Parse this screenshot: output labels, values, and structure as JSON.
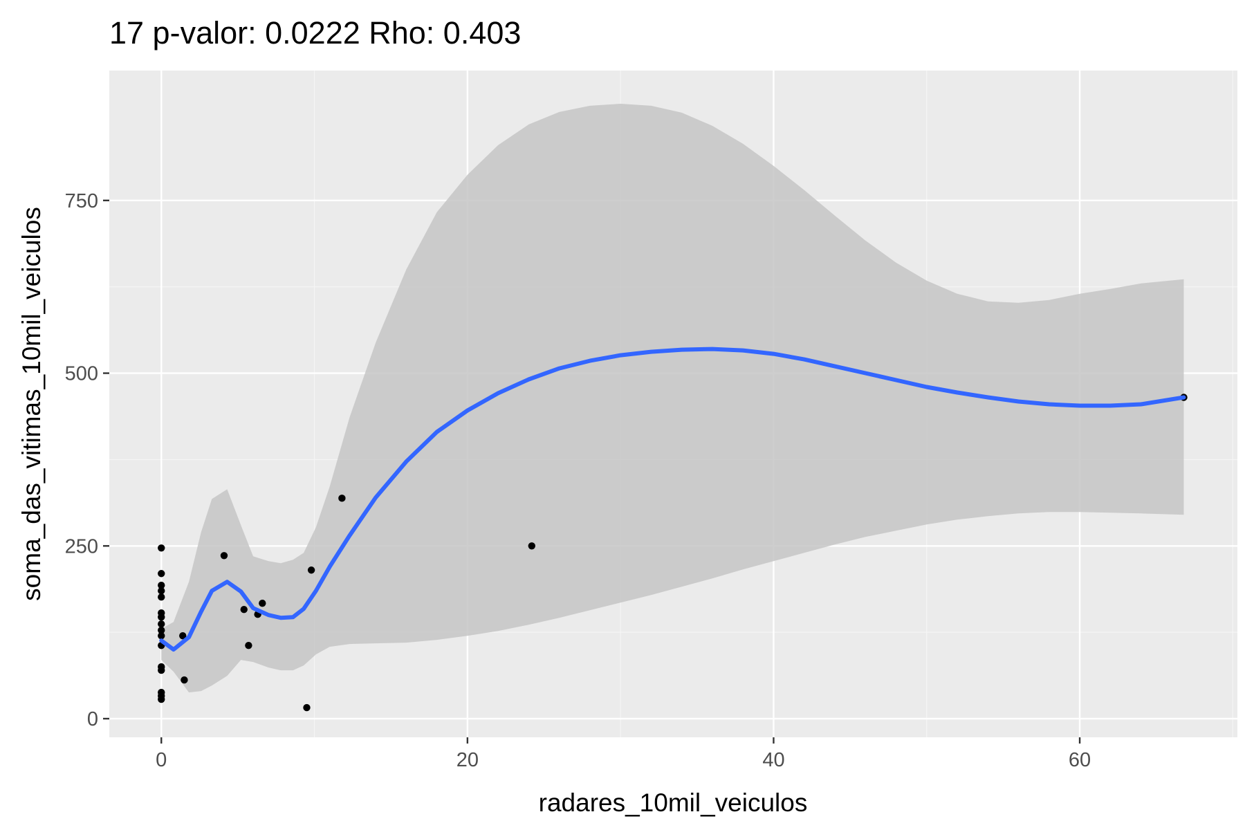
{
  "chart_data": {
    "type": "scatter",
    "title": "17 p-valor: 0.0222 Rho: 0.403",
    "xlabel": "radares_10mil_veiculos",
    "ylabel": "soma_das_vitimas_10mil_veiculos",
    "xlim": [
      -3.4,
      70.3
    ],
    "ylim": [
      -27,
      938
    ],
    "x_ticks": [
      0,
      20,
      40,
      60
    ],
    "y_ticks": [
      0,
      250,
      500,
      750
    ],
    "x_tick_labels": [
      "0",
      "20",
      "40",
      "60"
    ],
    "y_tick_labels": [
      "0",
      "250",
      "500",
      "750"
    ],
    "grid": true,
    "colors": {
      "panel": "#ebebeb",
      "grid_major": "#ffffff",
      "grid_minor": "#f5f5f5",
      "points": "#000000",
      "smooth_line": "#3366ff",
      "ribbon": "#c6c6c6"
    },
    "points": [
      {
        "x": 0,
        "y": 247
      },
      {
        "x": 0,
        "y": 210
      },
      {
        "x": 0,
        "y": 193
      },
      {
        "x": 0,
        "y": 185
      },
      {
        "x": 0,
        "y": 176
      },
      {
        "x": 0,
        "y": 153
      },
      {
        "x": 0,
        "y": 147
      },
      {
        "x": 0,
        "y": 137
      },
      {
        "x": 0,
        "y": 128
      },
      {
        "x": 0,
        "y": 120
      },
      {
        "x": 0,
        "y": 106
      },
      {
        "x": 0,
        "y": 75
      },
      {
        "x": 0,
        "y": 70
      },
      {
        "x": 0,
        "y": 38
      },
      {
        "x": 0,
        "y": 33
      },
      {
        "x": 0,
        "y": 28
      },
      {
        "x": 1.4,
        "y": 120
      },
      {
        "x": 1.5,
        "y": 56
      },
      {
        "x": 4.1,
        "y": 236
      },
      {
        "x": 5.4,
        "y": 158
      },
      {
        "x": 5.7,
        "y": 106
      },
      {
        "x": 6.3,
        "y": 151
      },
      {
        "x": 6.6,
        "y": 167
      },
      {
        "x": 9.5,
        "y": 16
      },
      {
        "x": 9.8,
        "y": 215
      },
      {
        "x": 11.8,
        "y": 319
      },
      {
        "x": 24.2,
        "y": 250
      },
      {
        "x": 66.8,
        "y": 465
      }
    ],
    "smooth": {
      "x": [
        0,
        0.8,
        1.8,
        2.6,
        3.3,
        4.3,
        5.2,
        6.0,
        7.0,
        7.8,
        8.6,
        9.3,
        10.1,
        11.0,
        12.3,
        14.0,
        16.0,
        18.0,
        20.0,
        22.0,
        24.0,
        26.0,
        28.0,
        30.0,
        32.0,
        34.0,
        36.0,
        38.0,
        40.0,
        42.0,
        44.0,
        46.0,
        48.0,
        50.0,
        52.0,
        54.0,
        56.0,
        58.0,
        60.0,
        62.0,
        64.0,
        66.8
      ],
      "y": [
        113,
        100,
        118,
        155,
        185,
        198,
        184,
        160,
        150,
        146,
        147,
        159,
        185,
        220,
        265,
        320,
        372,
        415,
        446,
        471,
        491,
        507,
        518,
        526,
        531,
        534,
        535,
        533,
        528,
        520,
        510,
        500,
        490,
        480,
        472,
        465,
        459,
        455,
        453,
        453,
        455,
        465
      ],
      "lower": [
        85,
        68,
        38,
        40,
        48,
        62,
        85,
        82,
        74,
        70,
        70,
        77,
        93,
        104,
        108,
        109,
        110,
        114,
        120,
        127,
        136,
        146,
        157,
        168,
        179,
        191,
        203,
        216,
        228,
        240,
        252,
        263,
        272,
        281,
        288,
        293,
        297,
        299,
        299,
        298,
        297,
        295
      ],
      "upper": [
        130,
        140,
        198,
        270,
        318,
        332,
        280,
        235,
        228,
        225,
        230,
        240,
        277,
        336,
        436,
        544,
        650,
        733,
        787,
        830,
        860,
        878,
        887,
        890,
        887,
        877,
        858,
        832,
        800,
        765,
        728,
        692,
        660,
        634,
        615,
        604,
        602,
        606,
        615,
        622,
        630,
        636
      ]
    }
  }
}
